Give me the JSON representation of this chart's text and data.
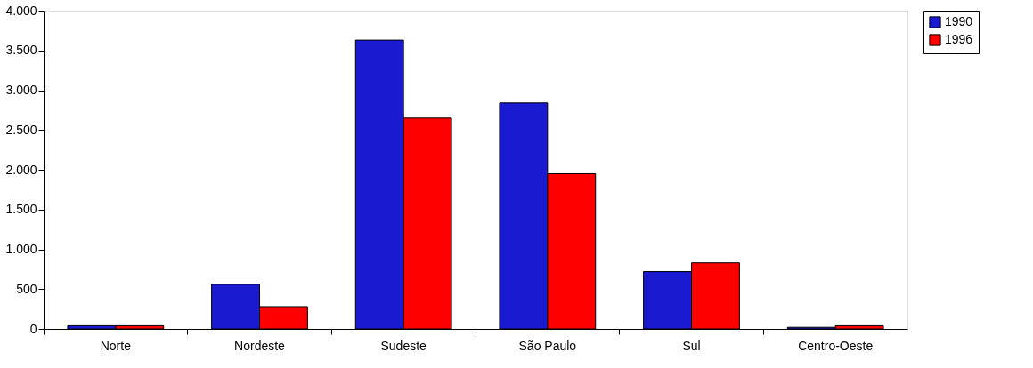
{
  "chart_data": {
    "type": "bar",
    "categories": [
      "Norte",
      "Nordeste",
      "Sudeste",
      "São Paulo",
      "Sul",
      "Centro-Oeste"
    ],
    "series": [
      {
        "name": "1990",
        "color": "#1a1ad0",
        "values": [
          40,
          560,
          3630,
          2840,
          720,
          20
        ]
      },
      {
        "name": "1996",
        "color": "#ff0000",
        "values": [
          40,
          280,
          2650,
          1950,
          830,
          40
        ]
      }
    ],
    "ylim": [
      0,
      4000
    ],
    "yticks": [
      0,
      500,
      {
        "value": 1000,
        "label": "1.000"
      },
      {
        "value": 1500,
        "label": "1.500"
      },
      {
        "value": 2000,
        "label": "2.000"
      },
      {
        "value": 2500,
        "label": "2.500"
      },
      {
        "value": 3000,
        "label": "3.000"
      },
      {
        "value": 3500,
        "label": "3.500"
      },
      {
        "value": 4000,
        "label": "4.000"
      }
    ],
    "grid": false,
    "legend": "right"
  }
}
